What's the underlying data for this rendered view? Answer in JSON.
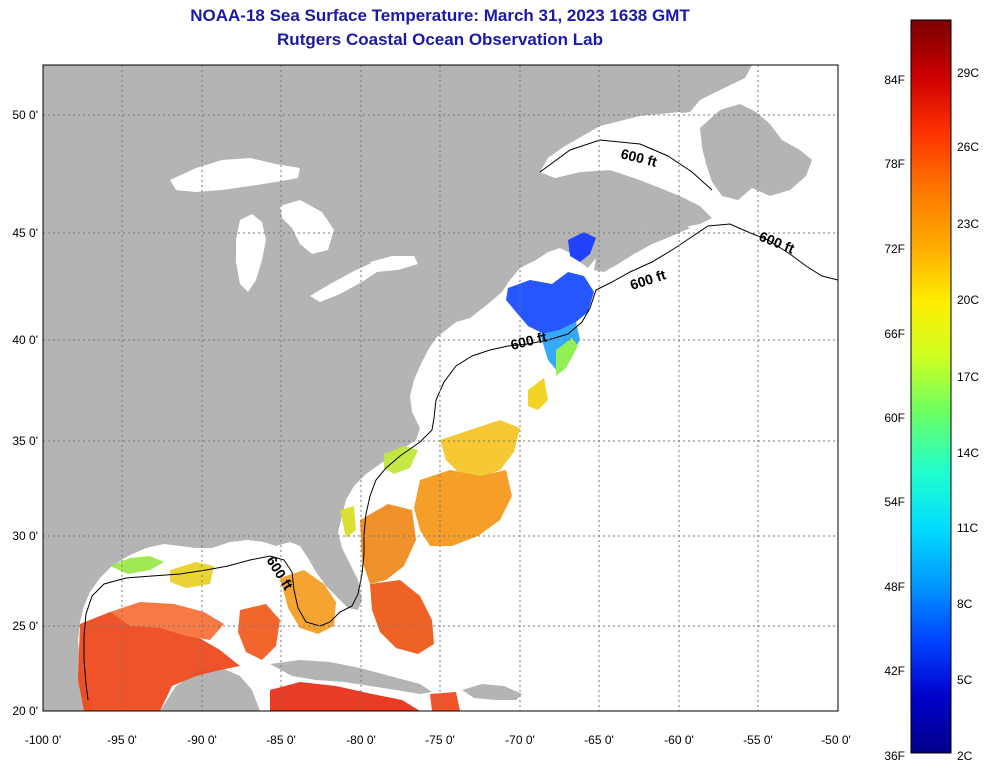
{
  "title": {
    "line1": "NOAA-18 Sea Surface Temperature:  March 31, 2023 1638 GMT",
    "line2": "Rutgers Coastal Ocean Observation Lab"
  },
  "map": {
    "lat_labels": [
      "50 0'",
      "45 0'",
      "40 0'",
      "35 0'",
      "30 0'",
      "25 0'",
      "20 0'"
    ],
    "lon_labels": [
      "-100 0'",
      "-95 0'",
      "-90 0'",
      "-85 0'",
      "-80 0'",
      "-75 0'",
      "-70 0'",
      "-65 0'",
      "-60 0'",
      "-55 0'",
      "-50 0'"
    ],
    "contour_labels": [
      "600 ft",
      "600 ft",
      "600 ft",
      "600 ft",
      "600 ft"
    ],
    "colors": {
      "land": "#b4b4b4",
      "ocean": "#ffffff",
      "grid": "#555555"
    }
  },
  "colorbar": {
    "fahrenheit_labels": [
      "84F",
      "78F",
      "72F",
      "66F",
      "60F",
      "54F",
      "48F",
      "42F",
      "36F"
    ],
    "celsius_labels": [
      "29C",
      "26C",
      "23C",
      "20C",
      "17C",
      "14C",
      "11C",
      "8C",
      "5C",
      "2C"
    ],
    "gradient": [
      "#7a0000",
      "#cc0000",
      "#ff3300",
      "#ff7700",
      "#ffaa00",
      "#ffee00",
      "#ccff22",
      "#66ff66",
      "#22ffcc",
      "#00ddff",
      "#0099ff",
      "#0044ff",
      "#0000cc",
      "#000088"
    ]
  }
}
